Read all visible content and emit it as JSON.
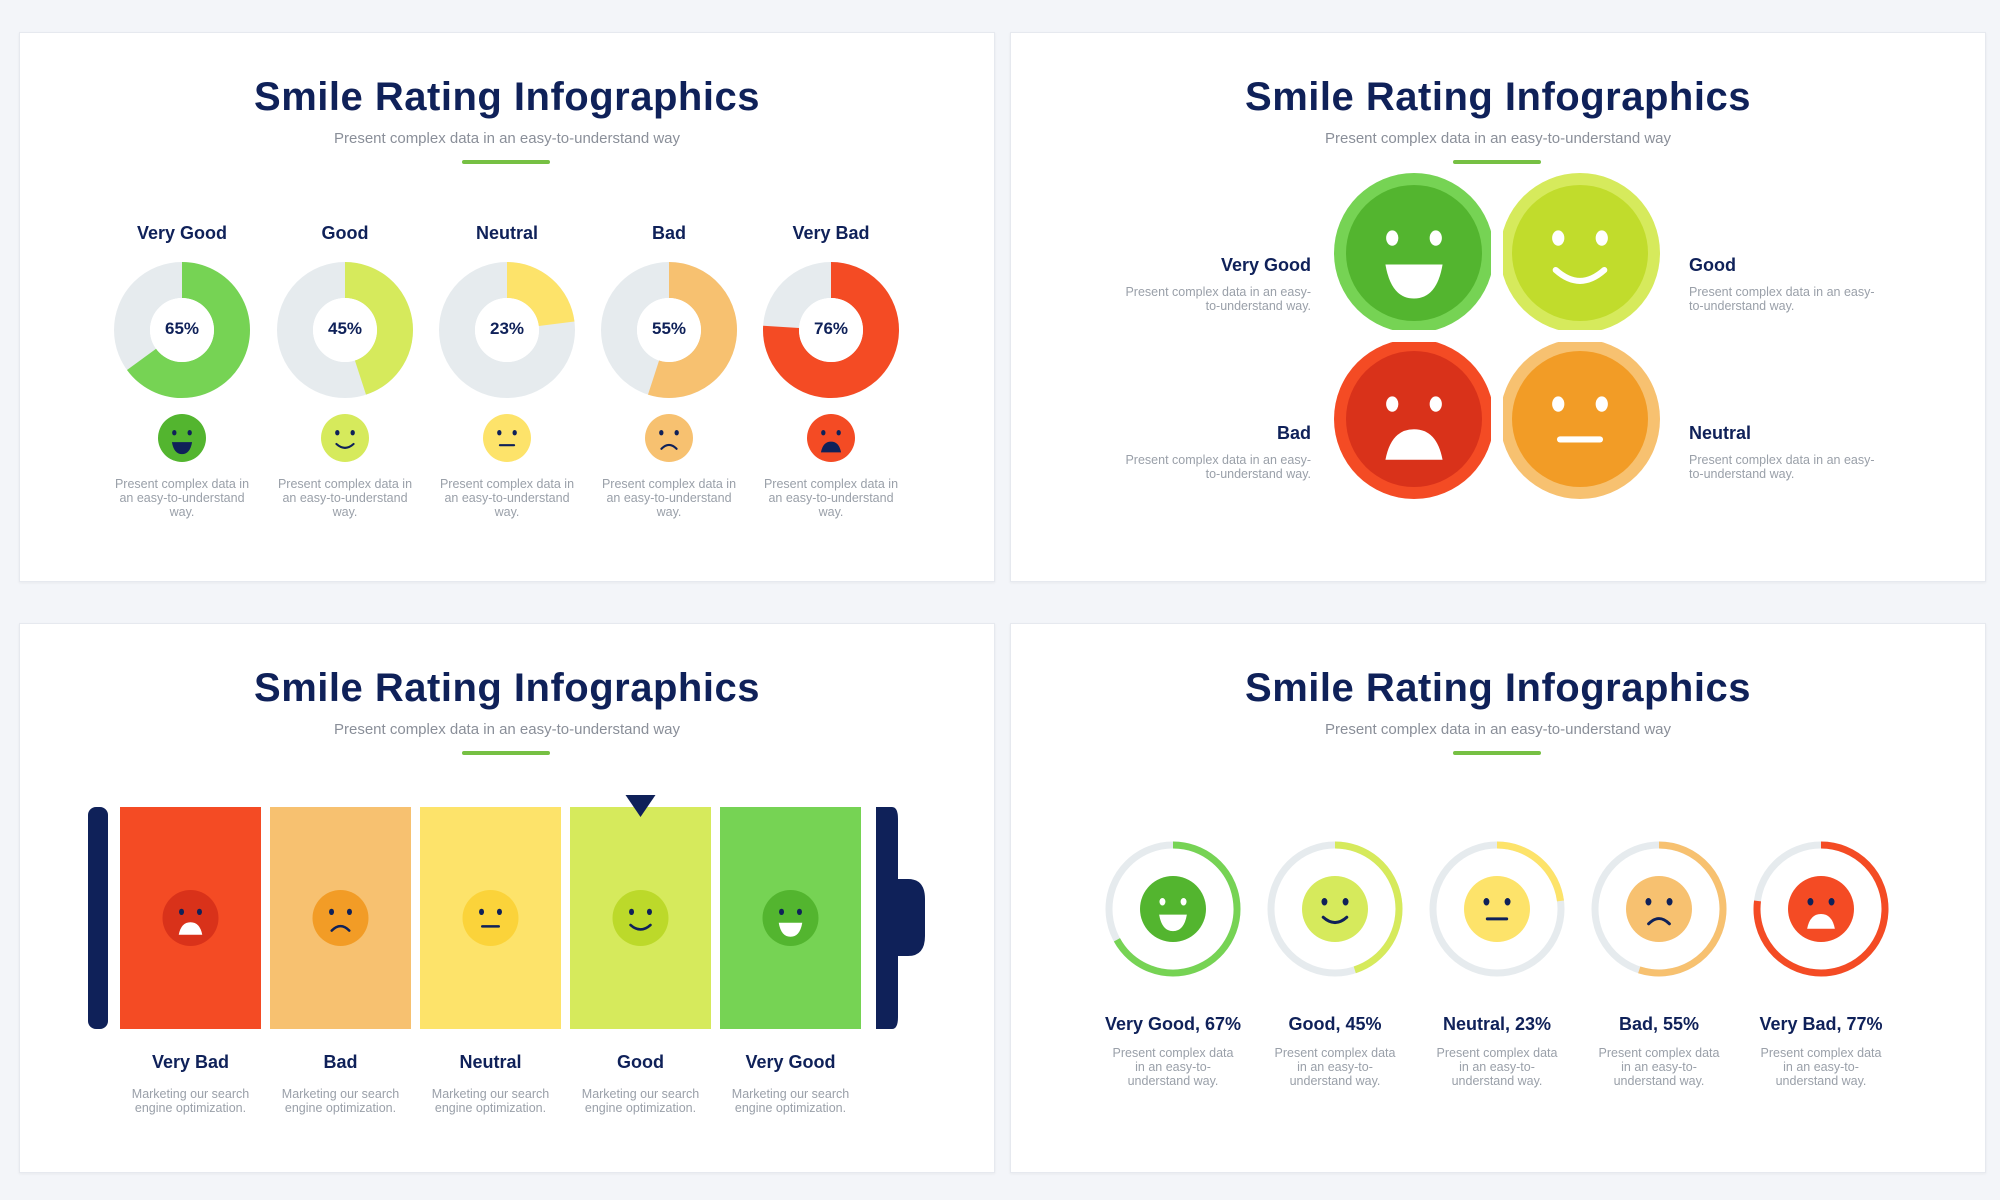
{
  "colors": {
    "very_good": "#76d354",
    "good": "#d6ea5c",
    "neutral": "#fde36a",
    "bad": "#f7c170",
    "very_bad": "#f44b24",
    "track": "#e6ebee",
    "navy": "#0f2159",
    "accent_line": "#76c043"
  },
  "slide1": {
    "title": "Smile Rating Infographics",
    "subtitle": "Present complex data in an easy-to-understand way",
    "items": [
      {
        "label": "Very Good",
        "percent_text": "65%",
        "value": 65,
        "face": "very-good",
        "desc": "Present complex data in an easy-to-understand way."
      },
      {
        "label": "Good",
        "percent_text": "45%",
        "value": 45,
        "face": "good",
        "desc": "Present complex data in an easy-to-understand way."
      },
      {
        "label": "Neutral",
        "percent_text": "23%",
        "value": 23,
        "face": "neutral",
        "desc": "Present complex data in an easy-to-understand way."
      },
      {
        "label": "Bad",
        "percent_text": "55%",
        "value": 55,
        "face": "bad",
        "desc": "Present complex data in an easy-to-understand way."
      },
      {
        "label": "Very Bad",
        "percent_text": "76%",
        "value": 76,
        "face": "very-bad",
        "desc": "Present complex data in an easy-to-understand way."
      }
    ]
  },
  "slide2": {
    "title": "Smile Rating Infographics",
    "subtitle": "Present complex data in an easy-to-understand way",
    "quadrants": [
      {
        "label": "Very Good",
        "desc": "Present complex data in an easy-to-understand way.",
        "face": "very-good"
      },
      {
        "label": "Good",
        "desc": "Present complex data in an easy-to-understand way.",
        "face": "good"
      },
      {
        "label": "Bad",
        "desc": "Present complex data in an easy-to-understand way.",
        "face": "very-bad"
      },
      {
        "label": "Neutral",
        "desc": "Present complex data in an easy-to-understand way.",
        "face": "neutral"
      }
    ]
  },
  "slide3": {
    "title": "Smile Rating Infographics",
    "subtitle": "Present complex data in an easy-to-understand way",
    "selected_index": 3,
    "segments": [
      {
        "label": "Very Bad",
        "desc": "Marketing our search engine optimization.",
        "face": "very-bad"
      },
      {
        "label": "Bad",
        "desc": "Marketing our search engine optimization.",
        "face": "bad"
      },
      {
        "label": "Neutral",
        "desc": "Marketing our search engine optimization.",
        "face": "neutral"
      },
      {
        "label": "Good",
        "desc": "Marketing our search engine optimization.",
        "face": "good"
      },
      {
        "label": "Very Good",
        "desc": "Marketing our search engine optimization.",
        "face": "very-good"
      }
    ]
  },
  "slide4": {
    "title": "Smile Rating Infographics",
    "subtitle": "Present complex data in an easy-to-understand way",
    "items": [
      {
        "label": "Very Good, 67%",
        "value": 67,
        "face": "very-good",
        "desc": "Present complex data in an easy-to-understand way."
      },
      {
        "label": "Good, 45%",
        "value": 45,
        "face": "good",
        "desc": "Present complex data in an easy-to-understand way."
      },
      {
        "label": "Neutral, 23%",
        "value": 23,
        "face": "neutral",
        "desc": "Present complex data in an easy-to-understand way."
      },
      {
        "label": "Bad, 55%",
        "value": 55,
        "face": "bad",
        "desc": "Present complex data in an easy-to-understand way."
      },
      {
        "label": "Very Bad, 77%",
        "value": 77,
        "face": "very-bad",
        "desc": "Present complex data in an easy-to-understand way."
      }
    ]
  }
}
